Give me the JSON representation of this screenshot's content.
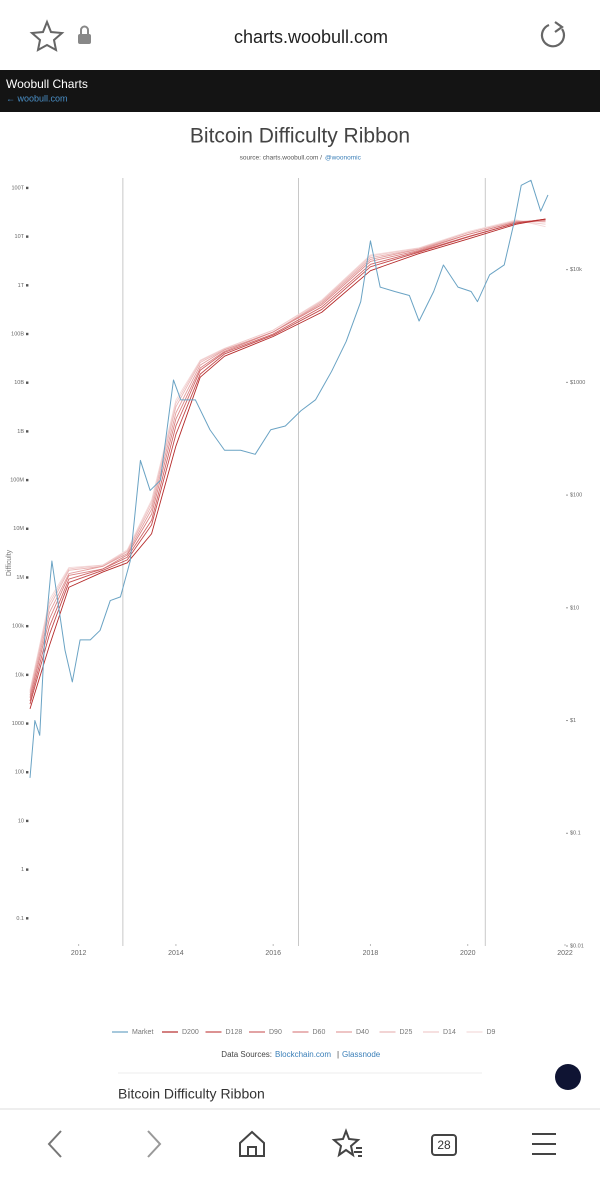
{
  "browser": {
    "url": "charts.woobull.com",
    "tab_count": "28"
  },
  "header": {
    "title": "Woobull Charts",
    "back_link": "← woobull.com"
  },
  "chart_data": {
    "type": "line",
    "title": "Bitcoin Difficulty Ribbon",
    "source_prefix": "source: charts.woobull.com /",
    "source_handle": "@woonomic",
    "ylabel": "Difficulty",
    "y_scale": "log",
    "y2_scale": "log",
    "xlim": [
      2011,
      2022
    ],
    "xticks": [
      2012,
      2014,
      2016,
      2018,
      2020,
      2022
    ],
    "ylim": [
      0.027,
      160000000000000.0
    ],
    "yticks": [
      0.1,
      1,
      10,
      100,
      1000,
      {
        "value": 10000,
        "label": "10k"
      },
      {
        "value": 100000,
        "label": "100k"
      },
      {
        "value": 1000000,
        "label": "1M"
      },
      {
        "value": 10000000,
        "label": "10M"
      },
      {
        "value": 100000000,
        "label": "100M"
      },
      {
        "value": 1000000000,
        "label": "1B"
      },
      {
        "value": 10000000000,
        "label": "10B"
      },
      {
        "value": 100000000000,
        "label": "100B"
      },
      {
        "value": 1000000000000,
        "label": "1T"
      },
      {
        "value": 10000000000000,
        "label": "10T"
      },
      {
        "value": 100000000000000,
        "label": "100T"
      }
    ],
    "y2lim": [
      0.01,
      65000
    ],
    "y2ticks": [
      {
        "value": 0.01,
        "label": "$0.01"
      },
      {
        "value": 0.1,
        "label": "$0.1"
      },
      {
        "value": 1,
        "label": "$1"
      },
      {
        "value": 10,
        "label": "$10"
      },
      {
        "value": 100,
        "label": "$100"
      },
      {
        "value": 1000,
        "label": "$1000"
      },
      {
        "value": 10000,
        "label": "$10k"
      }
    ],
    "halvings": [
      2012.91,
      2016.52,
      2020.36
    ],
    "x": [
      2011.0,
      2011.4,
      2011.8,
      2012.5,
      2013.0,
      2013.5,
      2014.0,
      2014.5,
      2015.0,
      2016.0,
      2017.0,
      2018.0,
      2019.0,
      2020.0,
      2021.0,
      2021.6
    ],
    "series": [
      {
        "name": "Market",
        "color": "#6aa3c4",
        "axis": "y2",
        "x": [
          2011.0,
          2011.1,
          2011.2,
          2011.3,
          2011.45,
          2011.57,
          2011.72,
          2011.87,
          2012.03,
          2012.24,
          2012.44,
          2012.65,
          2012.86,
          2013.06,
          2013.27,
          2013.47,
          2013.68,
          2013.95,
          2014.1,
          2014.4,
          2014.7,
          2015.0,
          2015.33,
          2015.63,
          2015.95,
          2016.25,
          2016.57,
          2016.87,
          2017.2,
          2017.5,
          2017.8,
          2018.0,
          2018.2,
          2018.5,
          2018.8,
          2019.0,
          2019.3,
          2019.5,
          2019.8,
          2020.07,
          2020.2,
          2020.45,
          2020.75,
          2020.96,
          2021.1,
          2021.3,
          2021.5,
          2021.65
        ],
        "values": [
          0.31,
          1,
          0.74,
          5.2,
          26,
          11.6,
          4.2,
          2.2,
          5.2,
          5.2,
          6.3,
          11.6,
          12.5,
          26,
          203,
          110,
          135,
          1050,
          700,
          700,
          380,
          250,
          250,
          230,
          380,
          410,
          560,
          700,
          1250,
          2300,
          5200,
          18000,
          7000,
          6400,
          5900,
          3500,
          6400,
          11000,
          7000,
          6400,
          5200,
          9000,
          11000,
          27000,
          56000,
          62000,
          33000,
          46000
        ]
      },
      {
        "name": "D200",
        "color": "#b52a2a",
        "values": [
          2000.0,
          40000.0,
          630000.0,
          1300000.0,
          2000000.0,
          7900000.0,
          500000000.0,
          13000000000.0,
          35000000000.0,
          89000000000.0,
          280000000000.0,
          2000000000000.0,
          4500000000000.0,
          8900000000000.0,
          18000000000000.0,
          23000000000000.0
        ]
      },
      {
        "name": "D128",
        "color": "#c4484a",
        "values": [
          2500.0,
          68000.0,
          790000.0,
          1400000.0,
          2300000.0,
          12000000.0,
          870000000.0,
          15000000000.0,
          39000000000.0,
          95000000000.0,
          320000000000.0,
          2400000000000.0,
          4800000000000.0,
          9800000000000.0,
          19000000000000.0,
          23000000000000.0
        ]
      },
      {
        "name": "D90",
        "color": "#cf6566",
        "values": [
          2900.0,
          98000.0,
          930000.0,
          1500000.0,
          2600000.0,
          15000000.0,
          1300000000.0,
          18000000000.0,
          42000000000.0,
          100000000000.0,
          360000000000.0,
          2700000000000.0,
          5000000000000.0,
          10000000000000.0,
          19000000000000.0,
          23000000000000.0
        ]
      },
      {
        "name": "D60",
        "color": "#da8384",
        "values": [
          3400.0,
          140000.0,
          1100000.0,
          1500000.0,
          2900000.0,
          20000000.0,
          1800000000.0,
          20000000000.0,
          44000000000.0,
          110000000000.0,
          400000000000.0,
          3100000000000.0,
          5200000000000.0,
          11000000000000.0,
          20000000000000.0,
          22000000000000.0
        ]
      },
      {
        "name": "D40",
        "color": "#e39e9e",
        "values": [
          3800.0,
          190000.0,
          1200000.0,
          1700000.0,
          3100000.0,
          25000000.0,
          2400000000.0,
          23000000000.0,
          47000000000.0,
          110000000000.0,
          430000000000.0,
          3400000000000.0,
          5500000000000.0,
          11000000000000.0,
          20000000000000.0,
          21000000000000.0
        ]
      },
      {
        "name": "D25",
        "color": "#eab6b6",
        "values": [
          4300.0,
          250000.0,
          1400000.0,
          1700000.0,
          3400000.0,
          30000000.0,
          3200000000.0,
          26000000000.0,
          48000000000.0,
          110000000000.0,
          460000000000.0,
          3700000000000.0,
          5600000000000.0,
          12000000000000.0,
          21000000000000.0,
          20000000000000.0
        ]
      },
      {
        "name": "D14",
        "color": "#f0caca",
        "values": [
          4600.0,
          300000.0,
          1500000.0,
          1800000.0,
          3500000.0,
          35000000.0,
          3800000000.0,
          28000000000.0,
          50000000000.0,
          120000000000.0,
          480000000000.0,
          4000000000000.0,
          5800000000000.0,
          12000000000000.0,
          21000000000000.0,
          18000000000000.0
        ]
      },
      {
        "name": "D9",
        "color": "#f4dada",
        "values": [
          4900.0,
          350000.0,
          1600000.0,
          1800000.0,
          3700000.0,
          39000000.0,
          4400000000.0,
          29000000000.0,
          51000000000.0,
          120000000000.0,
          500000000000.0,
          4200000000000.0,
          5900000000000.0,
          12600000000000.0,
          22000000000000.0,
          16000000000000.0
        ]
      }
    ]
  },
  "footer": {
    "sources_label": "Data Sources:",
    "sources": [
      "Blockchain.com",
      "Glassnode"
    ],
    "separator": "|"
  },
  "section_heading": "Bitcoin Difficulty Ribbon"
}
